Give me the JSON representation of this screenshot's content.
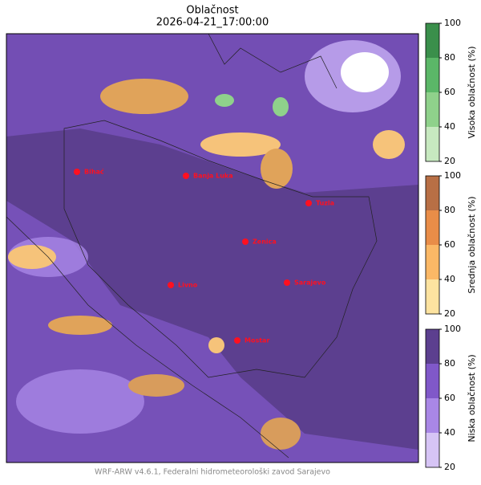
{
  "title": "Oblačnost",
  "subtitle": "2026-04-21_17:00:00",
  "footer": "WRF-ARW v4.6.1, Federalni hidrometeorološki zavod Sarajevo",
  "cities": [
    {
      "name": "Bihać"
    },
    {
      "name": "Banja Luka"
    },
    {
      "name": "Tuzla"
    },
    {
      "name": "Zenica"
    },
    {
      "name": "Sarajevo"
    },
    {
      "name": "Livno"
    },
    {
      "name": "Mostar"
    }
  ],
  "colorbars": [
    {
      "label": "Visoka oblačnost (%)",
      "ticks": [
        20,
        40,
        60,
        80,
        100
      ],
      "colors": [
        "#c7e9c0",
        "#8fd18b",
        "#5bb768",
        "#3a8f4b"
      ]
    },
    {
      "label": "Srednja oblačnost (%)",
      "ticks": [
        20,
        40,
        60,
        80,
        100
      ],
      "colors": [
        "#fde3a0",
        "#fbb866",
        "#e98d48",
        "#b86f45"
      ]
    },
    {
      "label": "Niska oblačnost (%)",
      "ticks": [
        20,
        40,
        60,
        80,
        100
      ],
      "colors": [
        "#d6c4f5",
        "#a987e6",
        "#8058c9",
        "#5c3f8f"
      ]
    }
  ]
}
